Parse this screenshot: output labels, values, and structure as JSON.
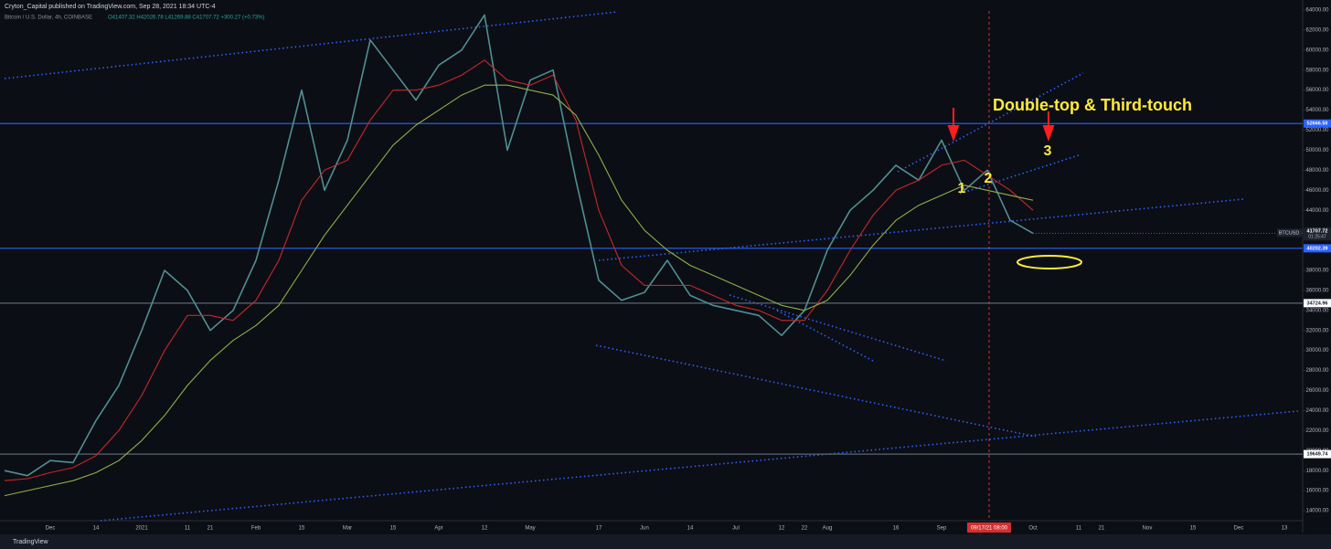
{
  "header": {
    "publisher": "Cryton_Capital published on TradingView.com, Sep 28, 2021 18:34 UTC-4",
    "symbol": "Bitcoin / U.S. Dollar, 4h, COINBASE",
    "ohlc": "O41407.32 H42026.78 L41269.88 C41707.72 +300.27 (+0.73%)"
  },
  "footer": {
    "brand": "TradingView"
  },
  "chart_data": {
    "type": "line",
    "annotations": {
      "title": "Double-top & Third-touch",
      "touch_1": "1",
      "touch_2": "2",
      "touch_3": "3"
    },
    "crosshair_label": "09/17/21 08:00",
    "categories": [
      null,
      null,
      "Dec",
      null,
      "14",
      null,
      "2021",
      null,
      "11",
      "21",
      null,
      "Feb",
      null,
      "15",
      null,
      "Mar",
      null,
      "15",
      null,
      "Apr",
      null,
      "12",
      null,
      "May",
      null,
      null,
      "17",
      null,
      "Jun",
      null,
      "14",
      null,
      "Jul",
      null,
      "12",
      "22",
      "Aug",
      null,
      null,
      "16",
      null,
      "Sep",
      null,
      null,
      null,
      "Oct",
      null,
      "11",
      "21",
      null,
      "Nov",
      null,
      "15",
      null,
      "Dec",
      null,
      "13"
    ],
    "series": [
      {
        "color": "#4f8f92",
        "values": [
          18000,
          17500,
          19000,
          18800,
          23000,
          26500,
          32000,
          38000,
          36000,
          32000,
          34000,
          39000,
          47000,
          56000,
          46000,
          51000,
          61000,
          58000,
          55000,
          58500,
          60000,
          63500,
          50000,
          57000,
          58000,
          47000,
          37000,
          35000,
          35800,
          39000,
          35500,
          34500,
          34000,
          33500,
          31500,
          34000,
          40000,
          44000,
          46000,
          48500,
          47000,
          51000,
          46000,
          48000,
          43000,
          41700,
          null,
          null,
          null,
          null,
          null,
          null,
          null,
          null,
          null,
          null,
          null
        ]
      },
      {
        "color": "#c62828",
        "values": [
          17000,
          17200,
          17800,
          18300,
          19500,
          22000,
          25500,
          30000,
          33500,
          33500,
          33000,
          35000,
          39000,
          45000,
          48000,
          49000,
          53000,
          56000,
          56000,
          56500,
          57500,
          59000,
          57000,
          56500,
          57500,
          53000,
          44000,
          38500,
          36500,
          36500,
          36500,
          35500,
          34500,
          34000,
          33000,
          33000,
          36000,
          40000,
          43500,
          46000,
          47000,
          48500,
          49000,
          47500,
          46000,
          44000,
          null,
          null,
          null,
          null,
          null,
          null,
          null,
          null,
          null,
          null,
          null
        ]
      },
      {
        "color": "#8bb04a",
        "values": [
          15500,
          16000,
          16500,
          17000,
          17800,
          19000,
          21000,
          23500,
          26500,
          29000,
          31000,
          32500,
          34500,
          38000,
          41500,
          44500,
          47500,
          50500,
          52500,
          54000,
          55500,
          56500,
          56500,
          56000,
          55500,
          53500,
          49500,
          45000,
          42000,
          40000,
          38500,
          37500,
          36500,
          35500,
          34500,
          34000,
          35000,
          37500,
          40500,
          43000,
          44500,
          45500,
          46500,
          46000,
          45500,
          45000,
          null,
          null,
          null,
          null,
          null,
          null,
          null,
          null,
          null,
          null,
          null
        ]
      }
    ],
    "levels": [
      {
        "value": 52666.5,
        "label": "52666.50",
        "color": "#2962ff"
      },
      {
        "value": 40202.39,
        "label": "40202.39",
        "color": "#2962ff"
      },
      {
        "value": 34724.96,
        "label": "34724.96",
        "color": "#5d6673"
      },
      {
        "value": 19649.74,
        "label": "19649.74",
        "color": "#5d6673"
      }
    ],
    "last_price": {
      "value": 41707.72,
      "label": "41707.72",
      "symbol": "BTCUSD",
      "countdown": "01:25:47"
    },
    "ylim": [
      13000,
      65000
    ],
    "yticks": [
      {
        "value": 14000,
        "label": "14000.00"
      },
      {
        "value": 16000,
        "label": "16000.00"
      },
      {
        "value": 18000,
        "label": "18000.00"
      },
      {
        "value": 20000,
        "label": "20000.00"
      },
      {
        "value": 22000,
        "label": "22000.00"
      },
      {
        "value": 24000,
        "label": "24000.00"
      },
      {
        "value": 26000,
        "label": "26000.00"
      },
      {
        "value": 28000,
        "label": "28000.00"
      },
      {
        "value": 30000,
        "label": "30000.00"
      },
      {
        "value": 32000,
        "label": "32000.00"
      },
      {
        "value": 34000,
        "label": "34000.00"
      },
      {
        "value": 36000,
        "label": "36000.00"
      },
      {
        "value": 38000,
        "label": "38000.00"
      },
      {
        "value": 40000,
        "label": "40000.00"
      },
      {
        "value": 42000,
        "label": "42000.00"
      },
      {
        "value": 44000,
        "label": "44000.00"
      },
      {
        "value": 46000,
        "label": "46000.00"
      },
      {
        "value": 48000,
        "label": "48000.00"
      },
      {
        "value": 50000,
        "label": "50000.00"
      },
      {
        "value": 52000,
        "label": "52000.00"
      },
      {
        "value": 54000,
        "label": "54000.00"
      },
      {
        "value": 56000,
        "label": "56000.00"
      },
      {
        "value": 58000,
        "label": "58000.00"
      },
      {
        "value": 60000,
        "label": "60000.00"
      },
      {
        "value": 62000,
        "label": "62000.00"
      },
      {
        "value": 64000,
        "label": "64000.00"
      }
    ],
    "grid": false
  }
}
